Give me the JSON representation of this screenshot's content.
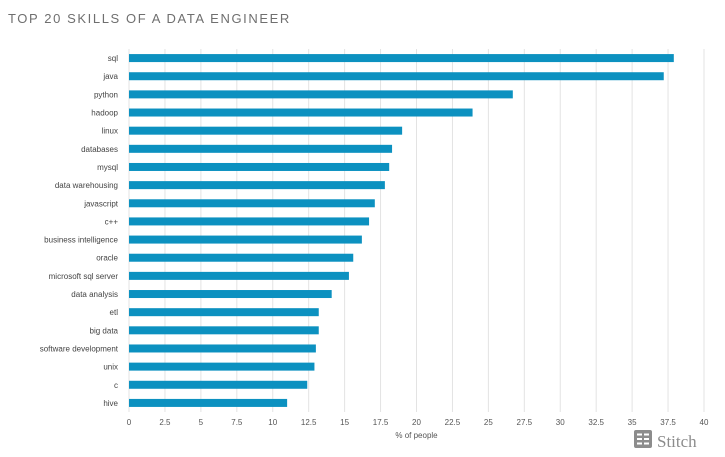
{
  "chart_data": {
    "type": "bar",
    "orientation": "horizontal",
    "title": "TOP 20 SKILLS OF A DATA ENGINEER",
    "xlabel": "% of people",
    "ylabel": "",
    "xlim": [
      0,
      40
    ],
    "x_ticks": [
      "0",
      "2.5",
      "5",
      "7.5",
      "10",
      "12.5",
      "15",
      "17.5",
      "20",
      "22.5",
      "25",
      "27.5",
      "30",
      "32.5",
      "35",
      "37.5",
      "40"
    ],
    "grid": true,
    "bar_color": "#0c91c0",
    "categories": [
      "sql",
      "java",
      "python",
      "hadoop",
      "linux",
      "databases",
      "mysql",
      "data warehousing",
      "javascript",
      "c++",
      "business intelligence",
      "oracle",
      "microsoft sql server",
      "data analysis",
      "etl",
      "big data",
      "software development",
      "unix",
      "c",
      "hive"
    ],
    "values": [
      37.9,
      37.2,
      26.7,
      23.9,
      19.0,
      18.3,
      18.1,
      17.8,
      17.1,
      16.7,
      16.2,
      15.6,
      15.3,
      14.1,
      13.2,
      13.2,
      13.0,
      12.9,
      12.4,
      11.0
    ]
  },
  "brand": {
    "name": "Stitch",
    "icon": "stitch-logo-icon",
    "color": "#8c8c8c"
  }
}
